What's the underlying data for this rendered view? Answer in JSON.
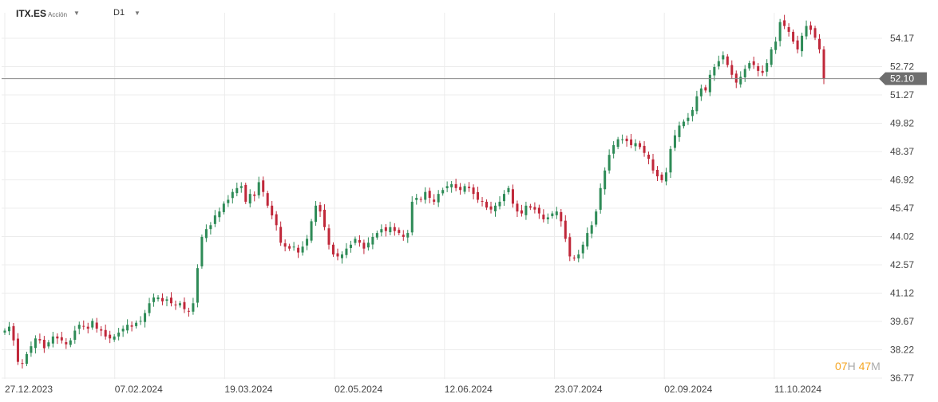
{
  "header": {
    "symbol": "ITX.ES",
    "instrument_type": "Acción",
    "timeframe": "D1"
  },
  "countdown": {
    "hours": "07",
    "hours_unit": "H",
    "minutes": "47",
    "minutes_unit": "M"
  },
  "colors": {
    "up": "#2e8b57",
    "down": "#c0283a",
    "grid": "#ececec",
    "price_line": "#888888",
    "price_label_bg": "#6e6e6e"
  },
  "chart_data": {
    "type": "candlestick",
    "y_ticks": [
      "54.17",
      "52.72",
      "51.27",
      "49.82",
      "48.37",
      "46.92",
      "45.47",
      "44.02",
      "42.57",
      "41.12",
      "39.67",
      "38.22",
      "36.77"
    ],
    "x_ticks": [
      "27.12.2023",
      "07.02.2024",
      "19.03.2024",
      "02.05.2024",
      "12.06.2024",
      "23.07.2024",
      "02.09.2024",
      "11.10.2024"
    ],
    "ylim": [
      36.77,
      55.17
    ],
    "current_price": "52.10",
    "legend": "none",
    "grid": true,
    "close_series": [
      39.2,
      39.4,
      38.7,
      37.6,
      37.5,
      38.0,
      38.4,
      38.8,
      38.7,
      38.3,
      38.6,
      38.9,
      38.8,
      38.7,
      38.5,
      38.7,
      39.2,
      39.5,
      39.4,
      39.3,
      39.7,
      39.3,
      39.2,
      38.9,
      38.8,
      38.9,
      39.1,
      39.3,
      39.5,
      39.4,
      39.6,
      39.7,
      40.1,
      40.6,
      40.9,
      40.9,
      40.7,
      40.8,
      40.6,
      40.5,
      40.6,
      40.3,
      40.2,
      40.6,
      42.4,
      44.0,
      44.4,
      44.6,
      45.1,
      45.3,
      45.7,
      45.9,
      46.3,
      46.5,
      46.6,
      45.8,
      46.2,
      46.1,
      46.8,
      46.3,
      45.6,
      45.1,
      44.6,
      43.7,
      43.5,
      43.4,
      43.5,
      43.2,
      43.5,
      43.9,
      44.8,
      45.6,
      45.3,
      44.5,
      43.6,
      43.1,
      43.0,
      43.1,
      43.4,
      43.6,
      43.9,
      43.7,
      43.4,
      43.7,
      44.0,
      44.2,
      44.4,
      44.3,
      44.5,
      44.3,
      44.2,
      44.0,
      44.2,
      45.8,
      46.0,
      45.9,
      46.3,
      46.0,
      45.8,
      46.2,
      46.4,
      46.6,
      46.7,
      46.5,
      46.4,
      46.6,
      46.5,
      46.2,
      45.9,
      45.8,
      45.5,
      45.4,
      45.6,
      45.8,
      46.2,
      46.5,
      45.7,
      45.3,
      45.2,
      45.6,
      45.5,
      45.4,
      45.2,
      44.9,
      45.0,
      45.2,
      45.3,
      44.8,
      43.9,
      43.0,
      42.9,
      43.1,
      43.6,
      44.2,
      44.6,
      45.3,
      46.5,
      47.4,
      48.2,
      48.7,
      49.0,
      49.0,
      48.9,
      48.7,
      48.8,
      48.6,
      48.3,
      48.0,
      47.4,
      47.1,
      46.9,
      47.3,
      48.5,
      49.2,
      49.7,
      49.9,
      50.1,
      50.5,
      51.2,
      51.6,
      51.5,
      52.3,
      52.7,
      53.0,
      53.3,
      52.8,
      52.3,
      51.9,
      52.2,
      52.6,
      52.9,
      52.8,
      52.5,
      52.4,
      52.9,
      53.6,
      54.0,
      55.0,
      54.8,
      54.5,
      54.0,
      53.6,
      54.3,
      54.8,
      54.6,
      54.2,
      53.6,
      52.1
    ],
    "first_bar_x_label": "27.12.2023",
    "last_bar_x_label": "after 11.10.2024"
  }
}
